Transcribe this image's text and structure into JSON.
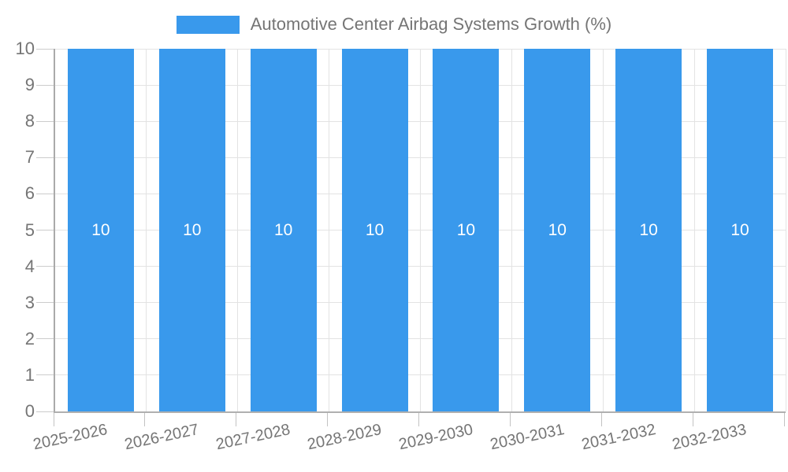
{
  "chart_data": {
    "type": "bar",
    "legend": "Automotive Center Airbag Systems Growth (%)",
    "categories": [
      "2025-2026",
      "2026-2027",
      "2027-2028",
      "2028-2029",
      "2029-2030",
      "2030-2031",
      "2031-2032",
      "2032-2033"
    ],
    "values": [
      10,
      10,
      10,
      10,
      10,
      10,
      10,
      10
    ],
    "bar_value_labels": [
      "10",
      "10",
      "10",
      "10",
      "10",
      "10",
      "10",
      "10"
    ],
    "ylabel": "",
    "xlabel": "",
    "ylim": [
      0,
      10
    ],
    "yticks": [
      0,
      1,
      2,
      3,
      4,
      5,
      6,
      7,
      8,
      9,
      10
    ],
    "grid": true,
    "legend_position": "top-center",
    "colors": {
      "bar": "#3999EC",
      "bar_value_text": "#ffffff",
      "axis_text": "#757575",
      "gridline": "#e3e3e3",
      "axis_line": "#b0b0b0",
      "tick": "#cccccc",
      "background": "#ffffff"
    }
  }
}
